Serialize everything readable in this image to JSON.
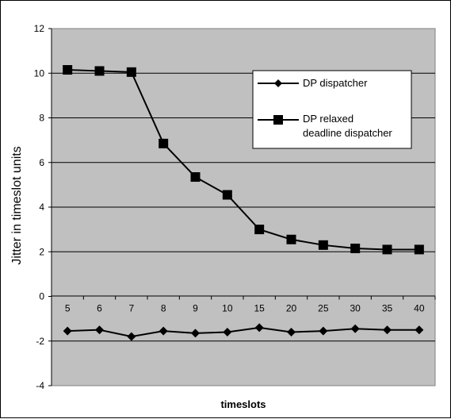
{
  "chart_data": {
    "type": "line",
    "title": "",
    "xlabel": "timeslots",
    "ylabel": "Jitter in timeslot units",
    "categories": [
      "5",
      "6",
      "7",
      "8",
      "9",
      "10",
      "15",
      "20",
      "25",
      "30",
      "35",
      "40"
    ],
    "ylim": [
      -4,
      12
    ],
    "yticks": [
      -4,
      -2,
      0,
      2,
      4,
      6,
      8,
      10,
      12
    ],
    "grid": true,
    "plot_background": "#c0c0c0",
    "legend_position": "top-right",
    "series": [
      {
        "name": "DP dispatcher",
        "marker": "diamond",
        "color": "#000000",
        "values": [
          -1.55,
          -1.5,
          -1.8,
          -1.55,
          -1.65,
          -1.6,
          -1.4,
          -1.6,
          -1.55,
          -1.45,
          -1.5,
          -1.5
        ]
      },
      {
        "name": "DP relaxed deadline dispatcher",
        "legend_lines": [
          "DP relaxed",
          "deadline dispatcher"
        ],
        "marker": "square",
        "color": "#000000",
        "values": [
          10.15,
          10.1,
          10.05,
          6.85,
          5.35,
          4.55,
          3.0,
          2.55,
          2.3,
          2.15,
          2.1,
          2.1
        ]
      }
    ]
  }
}
